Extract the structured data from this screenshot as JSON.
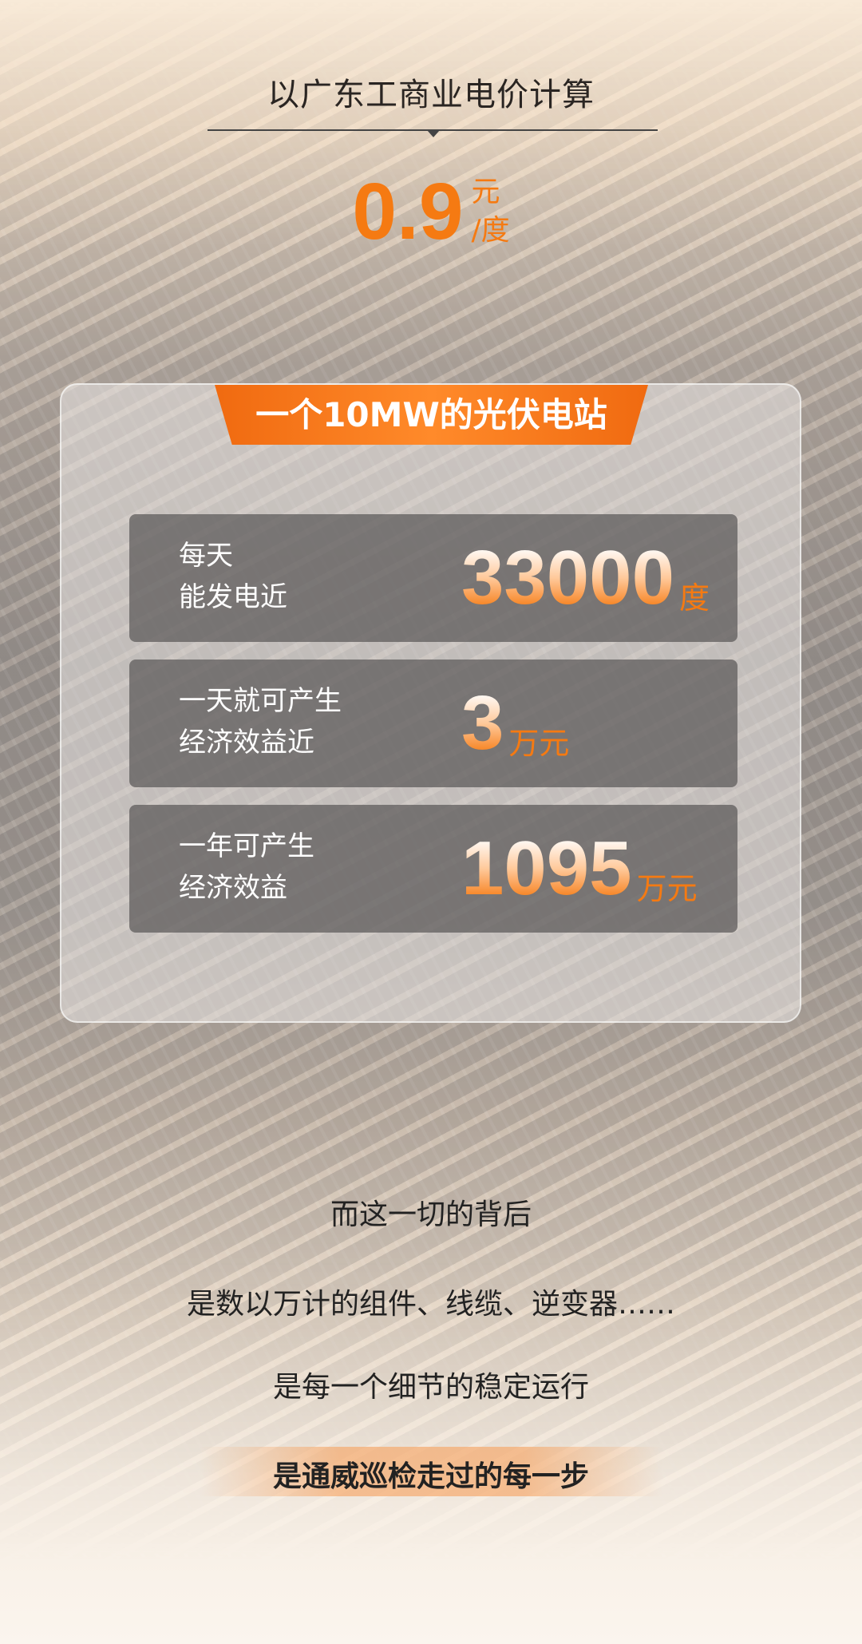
{
  "header": {
    "title": "以广东工商业电价计算",
    "price": "0.9",
    "unit_yuan": "元",
    "unit_du": "/度"
  },
  "card": {
    "banner": "一个10MW的光伏电站",
    "rows": [
      {
        "line1": "每天",
        "line2": "能发电近",
        "value": "33000",
        "unit": "度"
      },
      {
        "line1": "一天就可产生",
        "line2": "经济效益近",
        "value": "3",
        "unit": "万元"
      },
      {
        "line1": "一年可产生",
        "line2": "经济效益",
        "value": "1095",
        "unit": "万元"
      }
    ]
  },
  "footer": {
    "lines": [
      "而这一切的背后",
      "是数以万计的组件、线缆、逆变器……",
      "是每一个细节的稳定运行"
    ],
    "highlight": "是通威巡检走过的每一步"
  },
  "colors": {
    "accent": "#f57a12"
  }
}
